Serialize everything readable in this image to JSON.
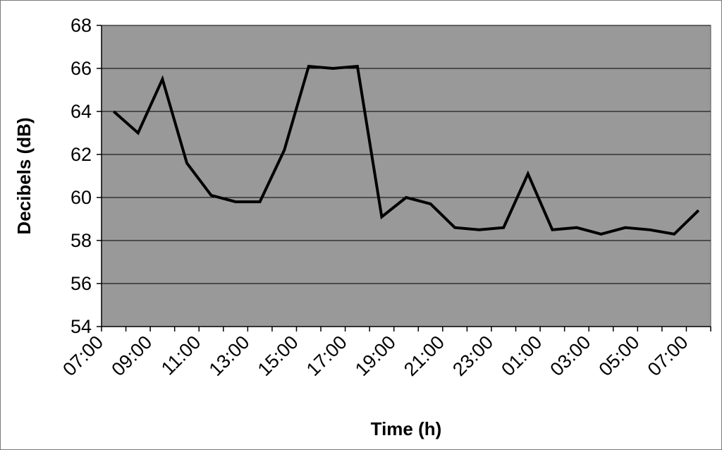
{
  "chart_data": {
    "type": "line",
    "xlabel": "Time (h)",
    "ylabel": "Decibels (dB)",
    "ylim": [
      54,
      68
    ],
    "yticks": [
      54,
      56,
      58,
      60,
      62,
      64,
      66,
      68
    ],
    "xtick_labels": [
      "07:00",
      "09:00",
      "11:00",
      "13:00",
      "15:00",
      "17:00",
      "19:00",
      "21:00",
      "23:00",
      "01:00",
      "03:00",
      "05:00",
      "07:00"
    ],
    "grid": "horizontal",
    "plot_background": "#999999",
    "line_color": "#000000",
    "series": [
      {
        "x": [
          "07:30",
          "08:30",
          "09:30",
          "10:30",
          "11:30",
          "12:30",
          "13:30",
          "14:30",
          "15:30",
          "16:30",
          "17:30",
          "18:30",
          "19:30",
          "20:30",
          "21:30",
          "22:30",
          "23:30",
          "00:30",
          "01:30",
          "02:30",
          "03:30",
          "04:30",
          "05:30",
          "06:30",
          "07:30"
        ],
        "values": [
          64.0,
          63.0,
          65.5,
          61.6,
          60.1,
          59.8,
          59.8,
          62.2,
          66.1,
          66.0,
          66.1,
          59.1,
          60.0,
          59.7,
          58.6,
          58.5,
          58.6,
          61.1,
          58.5,
          58.6,
          58.3,
          58.6,
          58.5,
          58.3,
          59.4
        ]
      }
    ]
  }
}
